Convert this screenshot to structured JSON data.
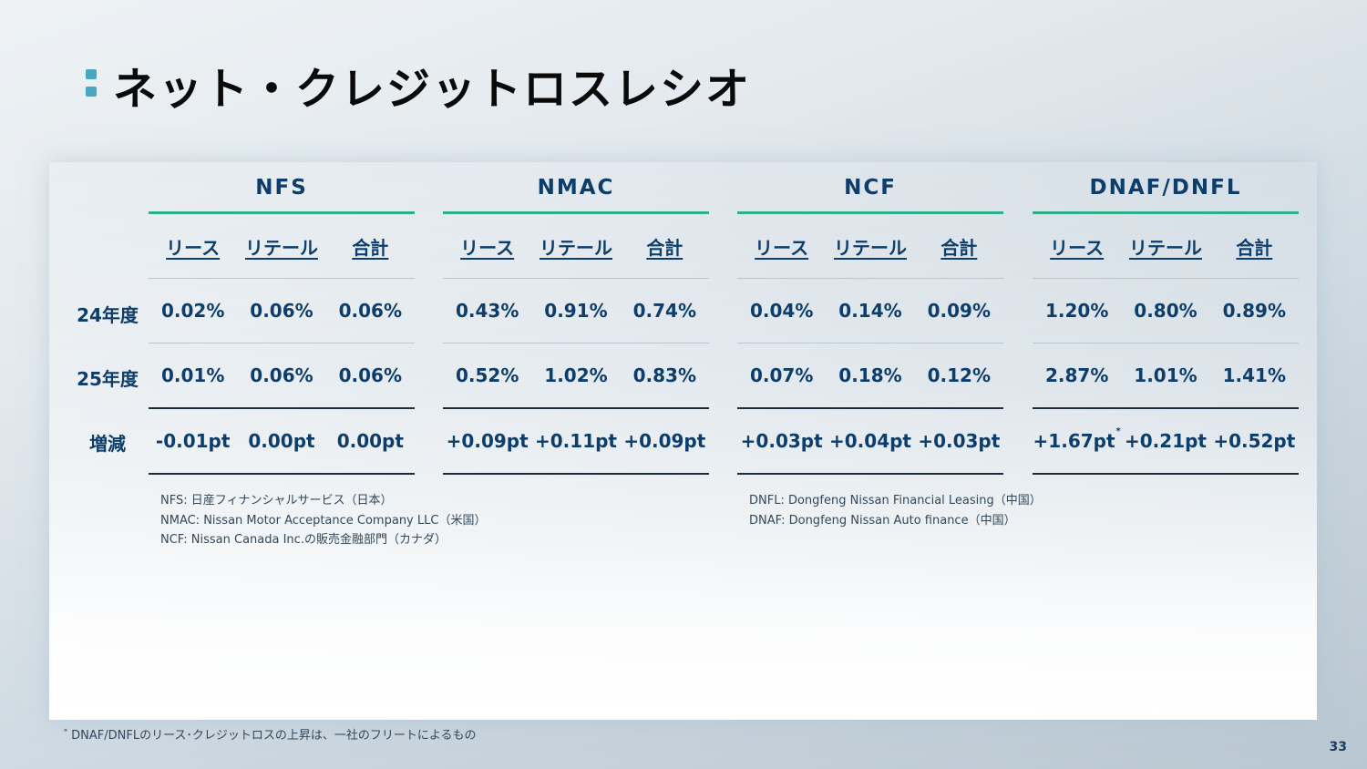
{
  "title": "ネット・クレジットロスレシオ",
  "row_labels": [
    "24年度",
    "25年度",
    "増減"
  ],
  "column_headers": [
    "リース",
    "リテール",
    "合計"
  ],
  "groups": [
    {
      "name": "NFS",
      "rows": [
        [
          "0.02%",
          "0.06%",
          "0.06%"
        ],
        [
          "0.01%",
          "0.06%",
          "0.06%"
        ],
        [
          "-0.01pt",
          "0.00pt",
          "0.00pt"
        ]
      ]
    },
    {
      "name": "NMAC",
      "rows": [
        [
          "0.43%",
          "0.91%",
          "0.74%"
        ],
        [
          "0.52%",
          "1.02%",
          "0.83%"
        ],
        [
          "+0.09pt",
          "+0.11pt",
          "+0.09pt"
        ]
      ]
    },
    {
      "name": "NCF",
      "rows": [
        [
          "0.04%",
          "0.14%",
          "0.09%"
        ],
        [
          "0.07%",
          "0.18%",
          "0.12%"
        ],
        [
          "+0.03pt",
          "+0.04pt",
          "+0.03pt"
        ]
      ]
    },
    {
      "name": "DNAF/DNFL",
      "rows": [
        [
          "1.20%",
          "0.80%",
          "0.89%"
        ],
        [
          "2.87%",
          "1.01%",
          "1.41%"
        ],
        [
          "+1.67pt",
          "+0.21pt",
          "+0.52pt"
        ]
      ],
      "asterisk_mark": "*"
    }
  ],
  "notes_left": [
    "NFS: 日産フィナンシャルサービス（日本）",
    "NMAC: Nissan Motor Acceptance Company LLC（米国）",
    "NCF: Nissan Canada Inc.の販売金融部門（カナダ）"
  ],
  "notes_right": [
    "DNFL: Dongfeng Nissan Financial Leasing（中国）",
    "DNAF: Dongfeng Nissan Auto finance（中国）"
  ],
  "footnote": {
    "mark": "*",
    "text": " DNAF/DNFLのリース･クレジットロスの上昇は、一社のフリートによるもの"
  },
  "page_number": "33"
}
